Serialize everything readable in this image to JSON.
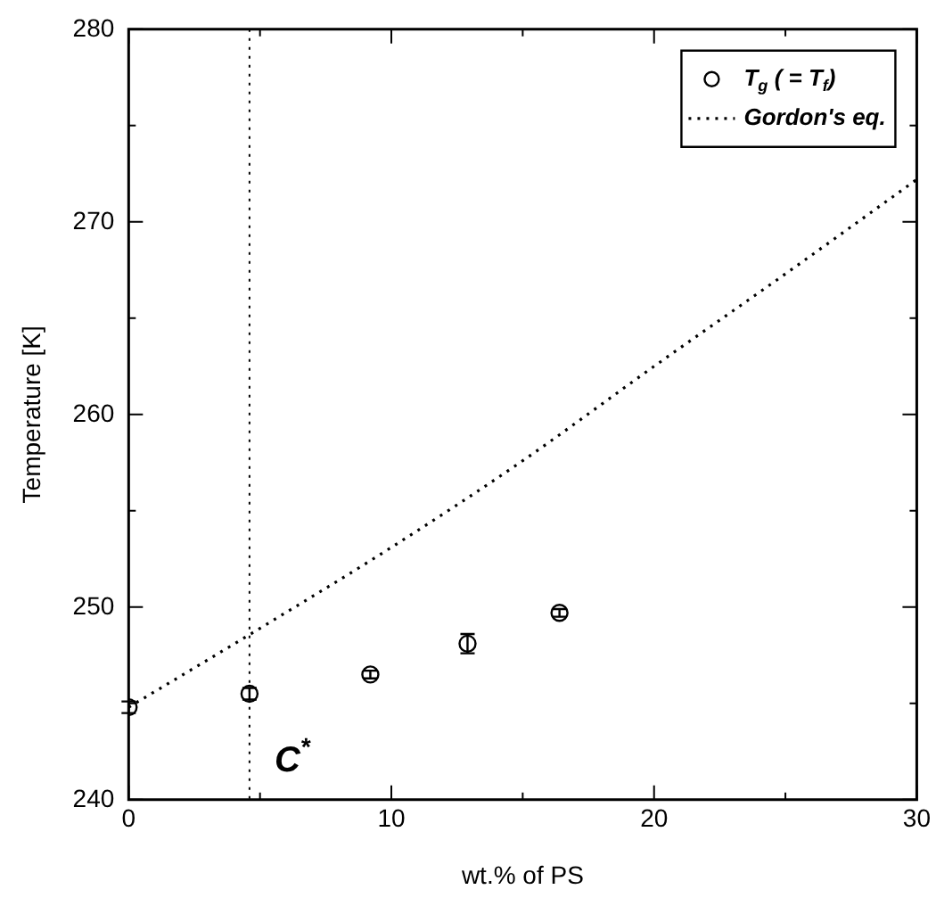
{
  "chart_data": {
    "type": "scatter",
    "xlabel": "wt.% of PS",
    "ylabel": "Temperature [K]",
    "xlim": [
      0,
      30
    ],
    "xticks": [
      0,
      10,
      20,
      30
    ],
    "ylim": [
      240,
      280
    ],
    "yticks": [
      240,
      250,
      260,
      270,
      280
    ],
    "grid": false,
    "legend": "top right",
    "series": [
      {
        "name": "T$_{g}$ ( = T$_{f}$)",
        "marker": "circle",
        "color": "#000000",
        "x": [
          0,
          4.6,
          9.2,
          12.9,
          16.4
        ],
        "values": [
          244.8,
          245.5,
          246.5,
          248.1,
          249.7
        ],
        "errors": [
          0.3,
          0.3,
          0.2,
          0.5,
          0.2
        ]
      },
      {
        "name": "Gordon's eq.",
        "type": "line",
        "marker": "none",
        "line_style": "dotted",
        "color": "#000000",
        "x": [
          0,
          5,
          10,
          15,
          20,
          25,
          30
        ],
        "values": [
          244.8,
          248.9,
          253.1,
          257.6,
          262.5,
          267.3,
          272.2
        ]
      }
    ],
    "ref_lines": [
      {
        "axis": "x",
        "value": 4.6,
        "line_style": "dotted",
        "color": "#000000"
      }
    ],
    "annotations": [
      "C$^{*}$"
    ]
  }
}
